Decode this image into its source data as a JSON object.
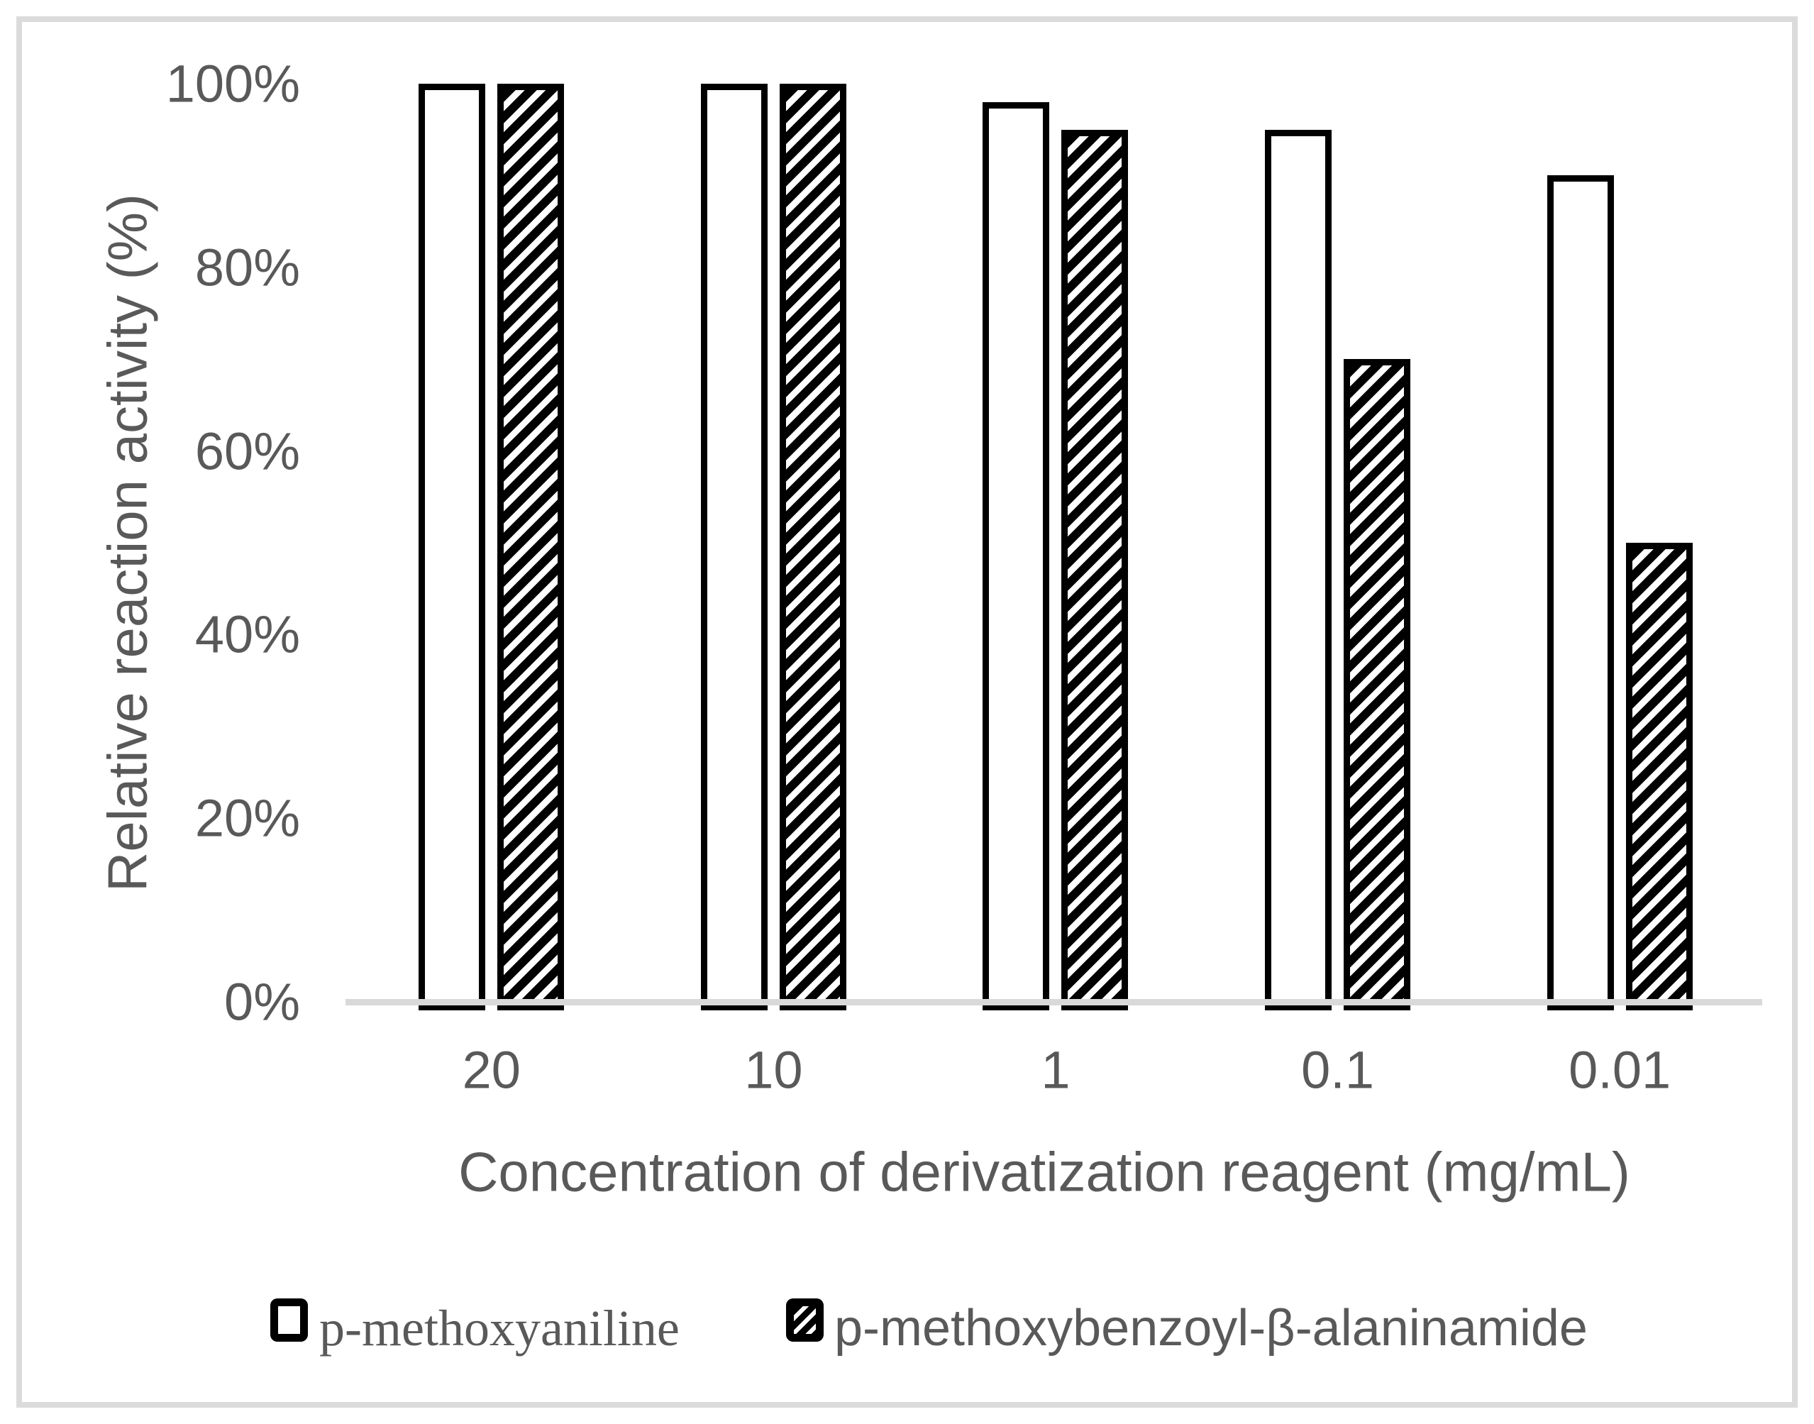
{
  "chart_data": {
    "type": "bar",
    "categories": [
      "20",
      "10",
      "1",
      "0.1",
      "0.01"
    ],
    "series": [
      {
        "name": "p-methoxyaniline",
        "style": "white-outline",
        "values": [
          100,
          100,
          98,
          95,
          90
        ]
      },
      {
        "name": "p-methoxybenzoyl-β-alaninamide",
        "style": "black-diagonal-hatch",
        "values": [
          100,
          100,
          95,
          70,
          50
        ]
      }
    ],
    "xlabel": "Concentration of derivatization reagent (mg/mL)",
    "ylabel": "Relative reaction activity (%)",
    "ylim": [
      0,
      100
    ],
    "yticks": [
      {
        "label": "100%",
        "value": 100
      },
      {
        "label": "80%",
        "value": 80
      },
      {
        "label": "60%",
        "value": 60
      },
      {
        "label": "40%",
        "value": 40
      },
      {
        "label": "20%",
        "value": 20
      },
      {
        "label": "0%",
        "value": 0
      }
    ],
    "grid": false,
    "legend_position": "bottom"
  },
  "colors": {
    "text": "#595959",
    "axis_line": "#D9D9D9",
    "figure_frame": "#DBDBDB",
    "bar_border": "#000000",
    "bar_fill": "#FFFFFF"
  }
}
